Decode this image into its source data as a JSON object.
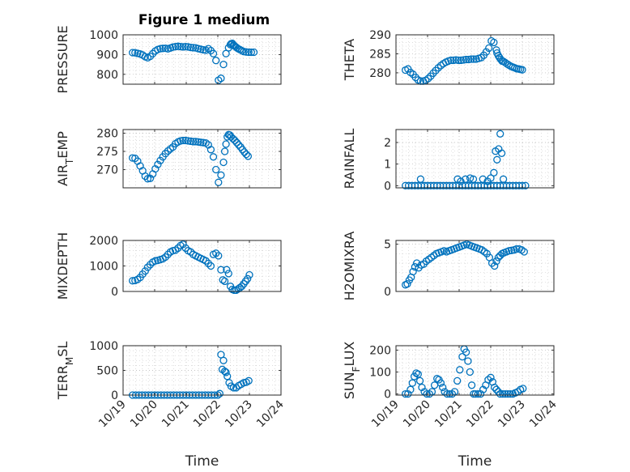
{
  "figure_title": "Figure 1 medium",
  "colors": {
    "marker": "#0072bd",
    "axis": "#262626",
    "grid": "#b0b0b0"
  },
  "chart_data": [
    {
      "type": "scatter",
      "ylabel": "PRESSURE",
      "ylim": [
        750,
        1000
      ],
      "yticks": [
        800,
        900,
        1000
      ],
      "xlim": [
        0,
        5
      ],
      "xticks": [
        "10/19",
        "10/20",
        "10/21",
        "10/22",
        "10/23",
        "10/24"
      ],
      "xlabel": "",
      "grid": true,
      "x": [
        0.3,
        0.38,
        0.46,
        0.54,
        0.62,
        0.7,
        0.78,
        0.86,
        0.94,
        1.02,
        1.1,
        1.18,
        1.26,
        1.34,
        1.42,
        1.5,
        1.58,
        1.66,
        1.74,
        1.82,
        1.9,
        1.98,
        2.06,
        2.14,
        2.22,
        2.3,
        2.38,
        2.46,
        2.54,
        2.62,
        2.7,
        2.78,
        2.86,
        2.94,
        3.02,
        3.1,
        3.18,
        3.26,
        3.34,
        3.4,
        3.42,
        3.46,
        3.5,
        3.52,
        3.56,
        3.6,
        3.64,
        3.7,
        3.76,
        3.82,
        3.9,
        3.98,
        4.06,
        4.14
      ],
      "values": [
        910,
        909,
        906,
        903,
        898,
        889,
        884,
        891,
        905,
        918,
        926,
        930,
        931,
        932,
        929,
        933,
        938,
        940,
        942,
        940,
        939,
        940,
        939,
        936,
        935,
        934,
        930,
        927,
        924,
        922,
        930,
        920,
        905,
        870,
        770,
        780,
        850,
        905,
        935,
        950,
        955,
        957,
        948,
        945,
        940,
        935,
        930,
        925,
        920,
        915,
        913,
        912,
        912,
        912
      ]
    },
    {
      "type": "scatter",
      "ylabel": "THETA",
      "ylim": [
        277,
        290
      ],
      "yticks": [
        280,
        285,
        290
      ],
      "xlim": [
        0,
        5
      ],
      "xticks": [
        "10/19",
        "10/20",
        "10/21",
        "10/22",
        "10/23",
        "10/24"
      ],
      "xlabel": "",
      "grid": true,
      "x": [
        0.3,
        0.38,
        0.46,
        0.54,
        0.62,
        0.7,
        0.78,
        0.86,
        0.94,
        1.02,
        1.1,
        1.18,
        1.26,
        1.34,
        1.42,
        1.5,
        1.58,
        1.66,
        1.74,
        1.82,
        1.9,
        1.98,
        2.06,
        2.14,
        2.22,
        2.3,
        2.38,
        2.46,
        2.54,
        2.62,
        2.7,
        2.78,
        2.86,
        2.94,
        3.02,
        3.1,
        3.18,
        3.2,
        3.24,
        3.28,
        3.32,
        3.36,
        3.4,
        3.46,
        3.52,
        3.58,
        3.64,
        3.7,
        3.76,
        3.82,
        3.88,
        3.94,
        4.0
      ],
      "values": [
        280.7,
        281,
        280.1,
        279.6,
        278.8,
        278.1,
        277.8,
        277.8,
        278,
        278.5,
        279.1,
        279.9,
        280.6,
        281.3,
        281.9,
        282.4,
        282.8,
        283.1,
        283.3,
        283.3,
        283.4,
        283.3,
        283.3,
        283.4,
        283.5,
        283.5,
        283.6,
        283.6,
        283.6,
        283.8,
        284,
        284.6,
        285.5,
        286.5,
        288.4,
        288,
        286,
        285.2,
        284.5,
        284,
        283.5,
        283.1,
        283,
        282.7,
        282.3,
        282,
        281.7,
        281.5,
        281.3,
        281.1,
        281.0,
        280.9,
        280.8
      ]
    },
    {
      "type": "scatter",
      "ylabel": "AIR_TEMP",
      "ylim": [
        265,
        281
      ],
      "yticks": [
        270,
        275,
        280
      ],
      "xlim": [
        0,
        5
      ],
      "xticks": [
        "10/19",
        "10/20",
        "10/21",
        "10/22",
        "10/23",
        "10/24"
      ],
      "xlabel": "",
      "grid": true,
      "x": [
        0.3,
        0.38,
        0.46,
        0.54,
        0.62,
        0.7,
        0.78,
        0.86,
        0.94,
        1.02,
        1.1,
        1.18,
        1.26,
        1.34,
        1.42,
        1.5,
        1.58,
        1.66,
        1.74,
        1.82,
        1.9,
        1.98,
        2.06,
        2.14,
        2.22,
        2.3,
        2.38,
        2.46,
        2.54,
        2.62,
        2.7,
        2.78,
        2.86,
        2.94,
        3.02,
        3.1,
        3.18,
        3.22,
        3.26,
        3.3,
        3.34,
        3.38,
        3.42,
        3.48,
        3.54,
        3.6,
        3.66,
        3.72,
        3.78,
        3.84,
        3.9,
        3.96
      ],
      "values": [
        273.2,
        273.1,
        272.3,
        271,
        269.7,
        268.2,
        267.5,
        267.6,
        268.8,
        270.2,
        271.4,
        272.5,
        273.5,
        274.4,
        275.1,
        275.7,
        276.2,
        277.1,
        277.6,
        277.9,
        278.0,
        278.0,
        277.9,
        277.8,
        277.7,
        277.7,
        277.6,
        277.5,
        277.4,
        277.3,
        276.8,
        275.5,
        273.5,
        270,
        266.5,
        268.5,
        272,
        275,
        277,
        279,
        279.6,
        279.5,
        279.0,
        278.5,
        278.0,
        277.4,
        276.8,
        276.2,
        275.5,
        274.8,
        274.2,
        273.7
      ]
    },
    {
      "type": "scatter",
      "ylabel": "RAINFALL",
      "ylim": [
        -0.1,
        2.6
      ],
      "yticks": [
        0,
        1,
        2
      ],
      "xlim": [
        0,
        5
      ],
      "xticks": [
        "10/19",
        "10/20",
        "10/21",
        "10/22",
        "10/23",
        "10/24"
      ],
      "xlabel": "",
      "grid": true,
      "x": [
        0.3,
        0.4,
        0.5,
        0.6,
        0.7,
        0.8,
        0.9,
        1.0,
        1.1,
        1.2,
        1.3,
        1.4,
        1.5,
        1.6,
        1.7,
        1.8,
        1.9,
        2.0,
        2.1,
        2.2,
        2.3,
        2.4,
        2.5,
        2.6,
        2.7,
        2.8,
        2.9,
        3.0,
        3.1,
        3.2,
        3.3,
        3.4,
        3.5,
        3.6,
        3.7,
        3.8,
        3.9,
        4.0,
        4.1,
        0.78,
        1.95,
        2.05,
        2.2,
        2.35,
        2.45,
        2.75,
        2.9,
        3.0,
        3.1,
        3.15,
        3.2,
        3.25,
        3.3,
        3.35,
        3.4
      ],
      "values": [
        0,
        0,
        0,
        0,
        0,
        0,
        0,
        0,
        0,
        0,
        0,
        0,
        0,
        0,
        0,
        0,
        0,
        0,
        0,
        0,
        0,
        0,
        0,
        0,
        0,
        0,
        0,
        0,
        0,
        0,
        0,
        0,
        0,
        0,
        0,
        0,
        0,
        0,
        0,
        0.3,
        0.3,
        0.2,
        0.3,
        0.35,
        0.3,
        0.3,
        0.2,
        0.35,
        0.6,
        1.6,
        1.2,
        1.7,
        2.4,
        1.5,
        0.3
      ]
    },
    {
      "type": "scatter",
      "ylabel": "MIXDEPTH",
      "ylim": [
        0,
        2000
      ],
      "yticks": [
        0,
        1000,
        2000
      ],
      "xlim": [
        0,
        5
      ],
      "xticks": [
        "10/19",
        "10/20",
        "10/21",
        "10/22",
        "10/23",
        "10/24"
      ],
      "xlabel": "",
      "grid": true,
      "x": [
        0.3,
        0.38,
        0.46,
        0.54,
        0.62,
        0.7,
        0.78,
        0.86,
        0.94,
        1.02,
        1.1,
        1.18,
        1.26,
        1.34,
        1.42,
        1.5,
        1.58,
        1.66,
        1.74,
        1.82,
        1.9,
        1.98,
        2.06,
        2.14,
        2.22,
        2.3,
        2.38,
        2.46,
        2.54,
        2.62,
        2.7,
        2.78,
        2.86,
        2.94,
        3.02,
        3.1,
        3.16,
        3.22,
        3.28,
        3.34,
        3.4,
        3.46,
        3.52,
        3.58,
        3.64,
        3.7,
        3.76,
        3.82,
        3.88,
        3.94,
        4.0
      ],
      "values": [
        420,
        430,
        470,
        550,
        680,
        800,
        950,
        1050,
        1150,
        1200,
        1220,
        1250,
        1280,
        1350,
        1450,
        1550,
        1600,
        1620,
        1700,
        1800,
        1850,
        1700,
        1600,
        1550,
        1450,
        1400,
        1350,
        1300,
        1250,
        1200,
        1100,
        1000,
        1450,
        1500,
        1400,
        850,
        450,
        400,
        850,
        700,
        200,
        80,
        50,
        50,
        100,
        150,
        200,
        300,
        400,
        500,
        650
      ]
    },
    {
      "type": "scatter",
      "ylabel": "H2OMIXRA",
      "ylim": [
        0,
        5.4
      ],
      "yticks": [
        0,
        5
      ],
      "xlim": [
        0,
        5
      ],
      "xticks": [
        "10/19",
        "10/20",
        "10/21",
        "10/22",
        "10/23",
        "10/24"
      ],
      "xlabel": "",
      "grid": true,
      "x": [
        0.3,
        0.36,
        0.42,
        0.48,
        0.54,
        0.6,
        0.66,
        0.72,
        0.8,
        0.88,
        0.96,
        1.04,
        1.12,
        1.2,
        1.28,
        1.36,
        1.44,
        1.52,
        1.6,
        1.68,
        1.76,
        1.84,
        1.92,
        2.0,
        2.08,
        2.16,
        2.24,
        2.32,
        2.4,
        2.48,
        2.56,
        2.64,
        2.72,
        2.8,
        2.88,
        2.96,
        3.04,
        3.12,
        3.18,
        3.24,
        3.3,
        3.36,
        3.42,
        3.5,
        3.58,
        3.66,
        3.74,
        3.82,
        3.9,
        3.98,
        4.06
      ],
      "values": [
        0.7,
        0.8,
        1.2,
        1.5,
        2.1,
        2.6,
        3.0,
        2.5,
        2.8,
        2.9,
        3.2,
        3.4,
        3.6,
        3.8,
        4.0,
        4.1,
        4.2,
        4.3,
        4.2,
        4.3,
        4.4,
        4.5,
        4.6,
        4.7,
        4.8,
        4.9,
        5.0,
        4.9,
        4.8,
        4.7,
        4.6,
        4.5,
        4.4,
        4.2,
        4.0,
        3.6,
        3.0,
        2.7,
        3.2,
        3.6,
        3.8,
        4.0,
        4.1,
        4.2,
        4.3,
        4.35,
        4.4,
        4.5,
        4.5,
        4.4,
        4.2
      ]
    },
    {
      "type": "scatter",
      "ylabel": "TERR_MSL",
      "ylim": [
        0,
        1000
      ],
      "yticks": [
        0,
        500,
        1000
      ],
      "xlim": [
        0,
        5
      ],
      "xticks": [
        "10/19",
        "10/20",
        "10/21",
        "10/22",
        "10/23",
        "10/24"
      ],
      "xlabel": "Time",
      "grid": true,
      "x": [
        0.3,
        0.4,
        0.5,
        0.6,
        0.7,
        0.8,
        0.9,
        1.0,
        1.1,
        1.2,
        1.3,
        1.4,
        1.5,
        1.6,
        1.7,
        1.8,
        1.9,
        2.0,
        2.1,
        2.2,
        2.3,
        2.4,
        2.5,
        2.6,
        2.7,
        2.8,
        2.9,
        3.0,
        3.06,
        3.1,
        3.14,
        3.18,
        3.22,
        3.26,
        3.3,
        3.36,
        3.42,
        3.5,
        3.58,
        3.66,
        3.74,
        3.82,
        3.9,
        3.98
      ],
      "values": [
        0,
        0,
        0,
        0,
        0,
        0,
        0,
        0,
        0,
        0,
        0,
        0,
        0,
        0,
        0,
        0,
        0,
        0,
        0,
        0,
        0,
        0,
        0,
        0,
        0,
        0,
        0,
        0,
        30,
        820,
        520,
        700,
        480,
        460,
        380,
        250,
        180,
        150,
        150,
        190,
        220,
        250,
        260,
        290
      ]
    },
    {
      "type": "scatter",
      "ylabel": "SUN_FLUX",
      "ylim": [
        -5,
        220
      ],
      "yticks": [
        0,
        100,
        200
      ],
      "xlim": [
        0,
        5
      ],
      "xticks": [
        "10/19",
        "10/20",
        "10/21",
        "10/22",
        "10/23",
        "10/24"
      ],
      "xlabel": "Time",
      "grid": true,
      "x": [
        0.3,
        0.38,
        0.46,
        0.52,
        0.58,
        0.64,
        0.7,
        0.76,
        0.82,
        0.9,
        0.98,
        1.06,
        1.14,
        1.22,
        1.3,
        1.36,
        1.42,
        1.48,
        1.54,
        1.62,
        1.7,
        1.78,
        1.86,
        1.94,
        2.02,
        2.1,
        2.16,
        2.22,
        2.28,
        2.34,
        2.4,
        2.46,
        2.52,
        2.6,
        2.68,
        2.76,
        2.84,
        2.92,
        3.0,
        3.06,
        3.12,
        3.18,
        3.24,
        3.3,
        3.38,
        3.46,
        3.54,
        3.62,
        3.7,
        3.78,
        3.86,
        3.94,
        4.02
      ],
      "values": [
        0,
        0,
        20,
        50,
        80,
        95,
        90,
        60,
        30,
        10,
        0,
        0,
        10,
        40,
        70,
        65,
        50,
        30,
        10,
        0,
        0,
        0,
        10,
        60,
        110,
        170,
        205,
        190,
        150,
        100,
        40,
        0,
        0,
        0,
        0,
        20,
        40,
        65,
        75,
        55,
        30,
        20,
        10,
        0,
        0,
        0,
        0,
        0,
        0,
        5,
        10,
        20,
        25
      ]
    }
  ]
}
